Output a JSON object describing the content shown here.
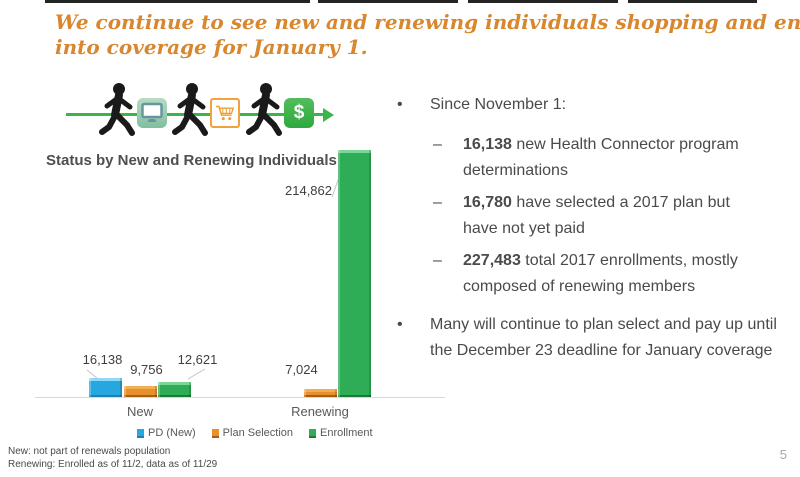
{
  "slide": {
    "title_line1": "We continue to see new and renewing individuals shopping and enrolling",
    "title_line2": "into coverage for January 1.",
    "page_number": "5",
    "footnote_line1": "New: not part of renewals population",
    "footnote_line2": "Renewing: Enrolled as of 11/2, data as of 11/29"
  },
  "colors": {
    "title_orange": "#D8872E",
    "body_gray": "#4A4A4A",
    "flow_arrow_green": "#3BB54A",
    "baseline_gray": "#D8D8D8"
  },
  "icons": {
    "flow_sequence": [
      "walking-person",
      "computer-monitor",
      "walking-person",
      "shopping-cart",
      "walking-person",
      "dollar-sign"
    ],
    "dollar_glyph": "$"
  },
  "chart_data": {
    "type": "bar",
    "title": "Status by New and Renewing Individuals",
    "categories": [
      "New",
      "Renewing"
    ],
    "series": [
      {
        "name": "PD (New)",
        "color": "#27A7DF",
        "color_light": "#8FD8F6",
        "color_dark": "#1B82B4",
        "values": [
          16138,
          null
        ],
        "labels": [
          "16,138",
          null
        ]
      },
      {
        "name": "Plan Selection",
        "color": "#E8902C",
        "color_light": "#F2AE55",
        "color_dark": "#A55E14",
        "values": [
          9756,
          7024
        ],
        "labels": [
          "9,756",
          "7,024"
        ]
      },
      {
        "name": "Enrollment",
        "color": "#2EAD56",
        "color_light": "#7BD697",
        "color_dark": "#1B7A3A",
        "values": [
          12621,
          214862
        ],
        "labels": [
          "12,621",
          "214,862"
        ]
      }
    ],
    "xlabel": "",
    "ylabel": "",
    "ylim": [
      0,
      220000
    ],
    "gridlines": false,
    "legend_position": "bottom",
    "data_labels_visible": true
  },
  "bullets": {
    "bullet_char": "•",
    "dash_char": "–",
    "item1": "Since November 1:",
    "sub1_num": "16,138",
    "sub1_text": " new Health Connector program determinations",
    "sub2_num": "16,780",
    "sub2_text": " have selected a 2017 plan but have not yet paid",
    "sub3_num": "227,483",
    "sub3_text": " total 2017 enrollments, mostly composed of renewing members",
    "item2": "Many will continue to plan select and pay up until the December 23 deadline for January coverage"
  }
}
